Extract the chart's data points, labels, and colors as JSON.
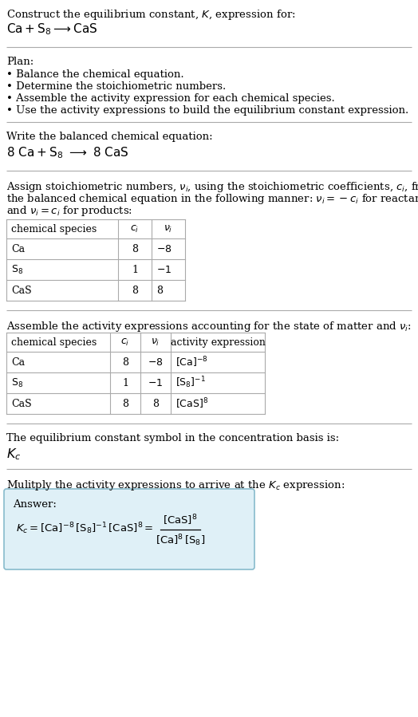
{
  "bg_color": "#ffffff",
  "text_color": "#000000",
  "line_color": "#aaaaaa",
  "font_size": 9.5,
  "title_line1": "Construct the equilibrium constant, $K$, expression for:",
  "title_line2": "$\\mathrm{Ca + S_8 \\longrightarrow CaS}$",
  "plan_header": "Plan:",
  "plan_bullets": [
    "Balance the chemical equation.",
    "Determine the stoichiometric numbers.",
    "Assemble the activity expression for each chemical species.",
    "Use the activity expressions to build the equilibrium constant expression."
  ],
  "balanced_header": "Write the balanced chemical equation:",
  "balanced_eq": "$\\mathrm{8\\ Ca + S_8\\ \\longrightarrow\\ 8\\ CaS}$",
  "stoich_intro": "Assign stoichiometric numbers, $\\nu_i$, using the stoichiometric coefficients, $c_i$, from the balanced chemical equation in the following manner: $\\nu_i = -c_i$ for reactants and $\\nu_i = c_i$ for products:",
  "table1_headers": [
    "chemical species",
    "$c_i$",
    "$\\nu_i$"
  ],
  "table1_rows": [
    [
      "Ca",
      "8",
      "$-8$"
    ],
    [
      "$\\mathrm{S_8}$",
      "1",
      "$-1$"
    ],
    [
      "CaS",
      "8",
      "8"
    ]
  ],
  "activity_header": "Assemble the activity expressions accounting for the state of matter and $\\nu_i$:",
  "table2_headers": [
    "chemical species",
    "$c_i$",
    "$\\nu_i$",
    "activity expression"
  ],
  "table2_rows": [
    [
      "Ca",
      "8",
      "$-8$",
      "$[\\mathrm{Ca}]^{-8}$"
    ],
    [
      "$\\mathrm{S_8}$",
      "1",
      "$-1$",
      "$[\\mathrm{S_8}]^{-1}$"
    ],
    [
      "CaS",
      "8",
      "8",
      "$[\\mathrm{CaS}]^{8}$"
    ]
  ],
  "kc_header": "The equilibrium constant symbol in the concentration basis is:",
  "kc_symbol": "$K_c$",
  "multiply_header": "Mulitply the activity expressions to arrive at the $K_c$ expression:",
  "answer_label": "Answer:",
  "answer_box_color": "#dff0f7",
  "answer_box_border": "#88bbcc"
}
